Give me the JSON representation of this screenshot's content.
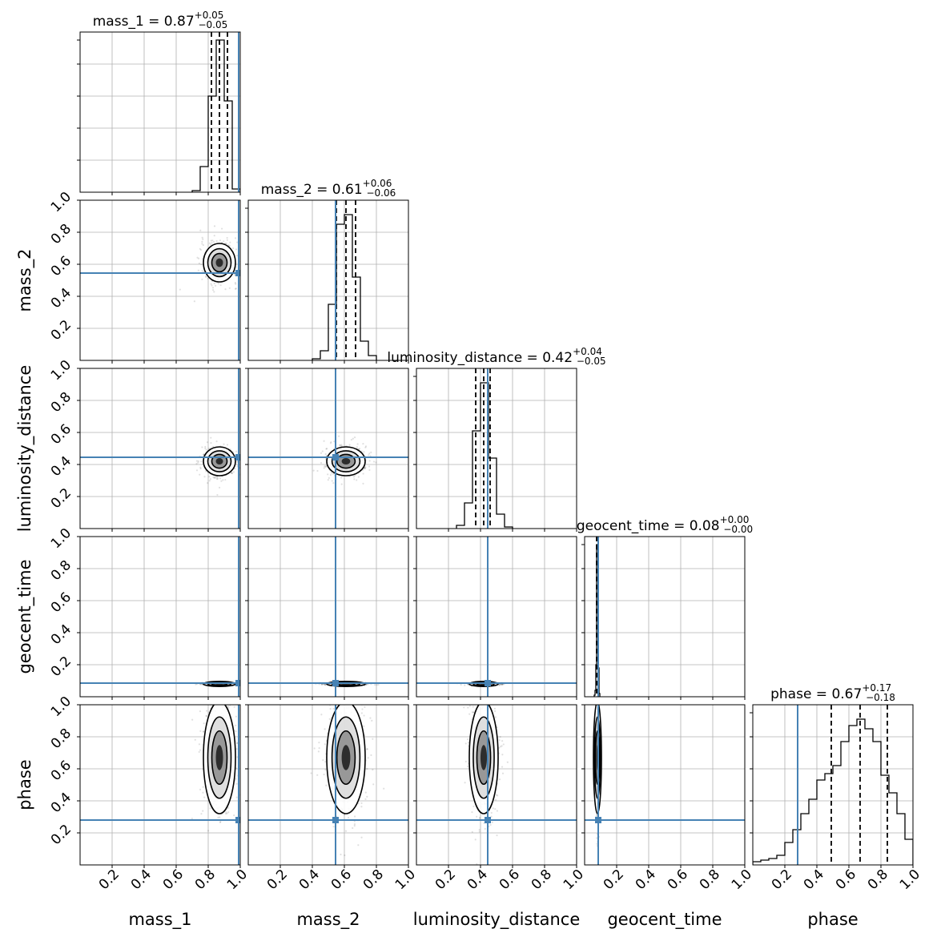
{
  "chart_data": {
    "type": "corner",
    "parameters": [
      "mass_1",
      "mass_2",
      "luminosity_distance",
      "geocent_time",
      "phase"
    ],
    "axis_range": [
      0,
      1
    ],
    "tick_values": [
      0.2,
      0.4,
      0.6,
      0.8,
      1.0
    ],
    "tick_labels": [
      "0.2",
      "0.4",
      "0.6",
      "0.8",
      "1.0"
    ],
    "grid": true,
    "truth_color": "#4682b4",
    "truths": {
      "mass_1": 0.99,
      "mass_2": 0.545,
      "luminosity_distance": 0.445,
      "geocent_time": 0.085,
      "phase": 0.28
    },
    "titles": [
      {
        "param": "mass_1",
        "prefix": "mass_1 = 0.87",
        "upper": "+0.05",
        "lower": "−0.05"
      },
      {
        "param": "mass_2",
        "prefix": "mass_2 = 0.61",
        "upper": "+0.06",
        "lower": "−0.06"
      },
      {
        "param": "luminosity_distance",
        "prefix": "luminosity_distance = 0.42",
        "upper": "+0.04",
        "lower": "−0.05"
      },
      {
        "param": "geocent_time",
        "prefix": "geocent_time = 0.08",
        "upper": "+0.00",
        "lower": "−0.00"
      },
      {
        "param": "phase",
        "prefix": "phase = 0.67",
        "upper": "+0.17",
        "lower": "−0.18"
      }
    ],
    "quantiles": {
      "mass_1": [
        0.82,
        0.87,
        0.92
      ],
      "mass_2": [
        0.55,
        0.61,
        0.67
      ],
      "luminosity_distance": [
        0.37,
        0.42,
        0.46
      ],
      "geocent_time": [
        0.075,
        0.08,
        0.085
      ],
      "phase": [
        0.49,
        0.67,
        0.84
      ]
    },
    "histograms": [
      {
        "param": "mass_1",
        "bins": [
          0.7,
          0.75,
          0.8,
          0.85,
          0.9,
          0.95,
          1.0
        ],
        "counts": [
          0.01,
          0.16,
          0.6,
          0.95,
          0.57,
          0.02
        ]
      },
      {
        "param": "mass_2",
        "bins": [
          0.4,
          0.45,
          0.5,
          0.55,
          0.6,
          0.65,
          0.7,
          0.75,
          0.8
        ],
        "counts": [
          0.01,
          0.06,
          0.35,
          0.85,
          0.91,
          0.52,
          0.12,
          0.03
        ]
      },
      {
        "param": "luminosity_distance",
        "bins": [
          0.25,
          0.3,
          0.35,
          0.4,
          0.45,
          0.5,
          0.55,
          0.6
        ],
        "counts": [
          0.02,
          0.16,
          0.61,
          0.91,
          0.44,
          0.09,
          0.01
        ]
      },
      {
        "param": "geocent_time",
        "bins": [
          0.06,
          0.065,
          0.07,
          0.075,
          0.08,
          0.085,
          0.09,
          0.095
        ],
        "counts": [
          0.01,
          0.04,
          0.2,
          0.95,
          0.92,
          0.18,
          0.02
        ]
      },
      {
        "param": "phase",
        "bins": [
          0.0,
          0.05,
          0.1,
          0.15,
          0.2,
          0.25,
          0.3,
          0.35,
          0.4,
          0.45,
          0.5,
          0.55,
          0.6,
          0.65,
          0.7,
          0.75,
          0.8,
          0.85,
          0.9,
          0.95,
          1.0
        ],
        "counts": [
          0.02,
          0.03,
          0.04,
          0.06,
          0.14,
          0.22,
          0.32,
          0.41,
          0.53,
          0.57,
          0.62,
          0.77,
          0.87,
          0.91,
          0.85,
          0.77,
          0.56,
          0.45,
          0.32,
          0.16
        ]
      }
    ],
    "posterior_2d": [
      {
        "x": "mass_1",
        "y": "mass_2",
        "mean": [
          0.87,
          0.61
        ],
        "sd": [
          0.05,
          0.06
        ]
      },
      {
        "x": "mass_1",
        "y": "luminosity_distance",
        "mean": [
          0.87,
          0.42
        ],
        "sd": [
          0.05,
          0.045
        ]
      },
      {
        "x": "mass_2",
        "y": "luminosity_distance",
        "mean": [
          0.61,
          0.42
        ],
        "sd": [
          0.06,
          0.045
        ]
      },
      {
        "x": "mass_1",
        "y": "geocent_time",
        "mean": [
          0.87,
          0.08
        ],
        "sd": [
          0.05,
          0.004
        ]
      },
      {
        "x": "mass_2",
        "y": "geocent_time",
        "mean": [
          0.61,
          0.08
        ],
        "sd": [
          0.06,
          0.004
        ]
      },
      {
        "x": "luminosity_distance",
        "y": "geocent_time",
        "mean": [
          0.42,
          0.08
        ],
        "sd": [
          0.045,
          0.004
        ]
      },
      {
        "x": "mass_1",
        "y": "phase",
        "mean": [
          0.87,
          0.67
        ],
        "sd": [
          0.05,
          0.175
        ]
      },
      {
        "x": "mass_2",
        "y": "phase",
        "mean": [
          0.61,
          0.67
        ],
        "sd": [
          0.06,
          0.175
        ]
      },
      {
        "x": "luminosity_distance",
        "y": "phase",
        "mean": [
          0.42,
          0.67
        ],
        "sd": [
          0.045,
          0.175
        ]
      },
      {
        "x": "geocent_time",
        "y": "phase",
        "mean": [
          0.08,
          0.67
        ],
        "sd": [
          0.004,
          0.175
        ]
      }
    ]
  }
}
